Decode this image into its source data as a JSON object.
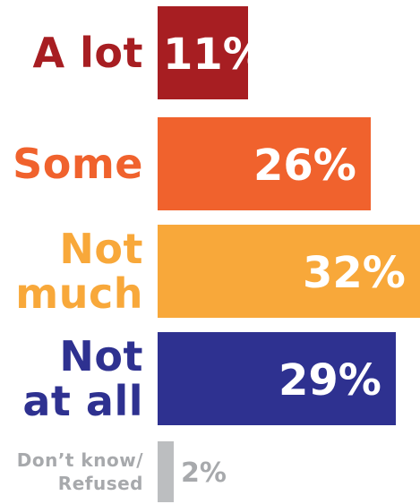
{
  "chart_data": {
    "type": "bar",
    "orientation": "horizontal",
    "title": "",
    "xlabel": "",
    "ylabel": "",
    "categories": [
      "A lot",
      "Some",
      "Not\nmuch",
      "Not\nat all",
      "Don’t know/\nRefused"
    ],
    "values": [
      11,
      26,
      32,
      29,
      2
    ],
    "value_labels": [
      "11%",
      "26%",
      "32%",
      "29%",
      "2%"
    ],
    "colors": [
      "#a71e22",
      "#f0622d",
      "#f8a83a",
      "#2e3190",
      "#bcbec0"
    ],
    "xlim": [
      0,
      32
    ],
    "grid": false,
    "legend": "none"
  }
}
